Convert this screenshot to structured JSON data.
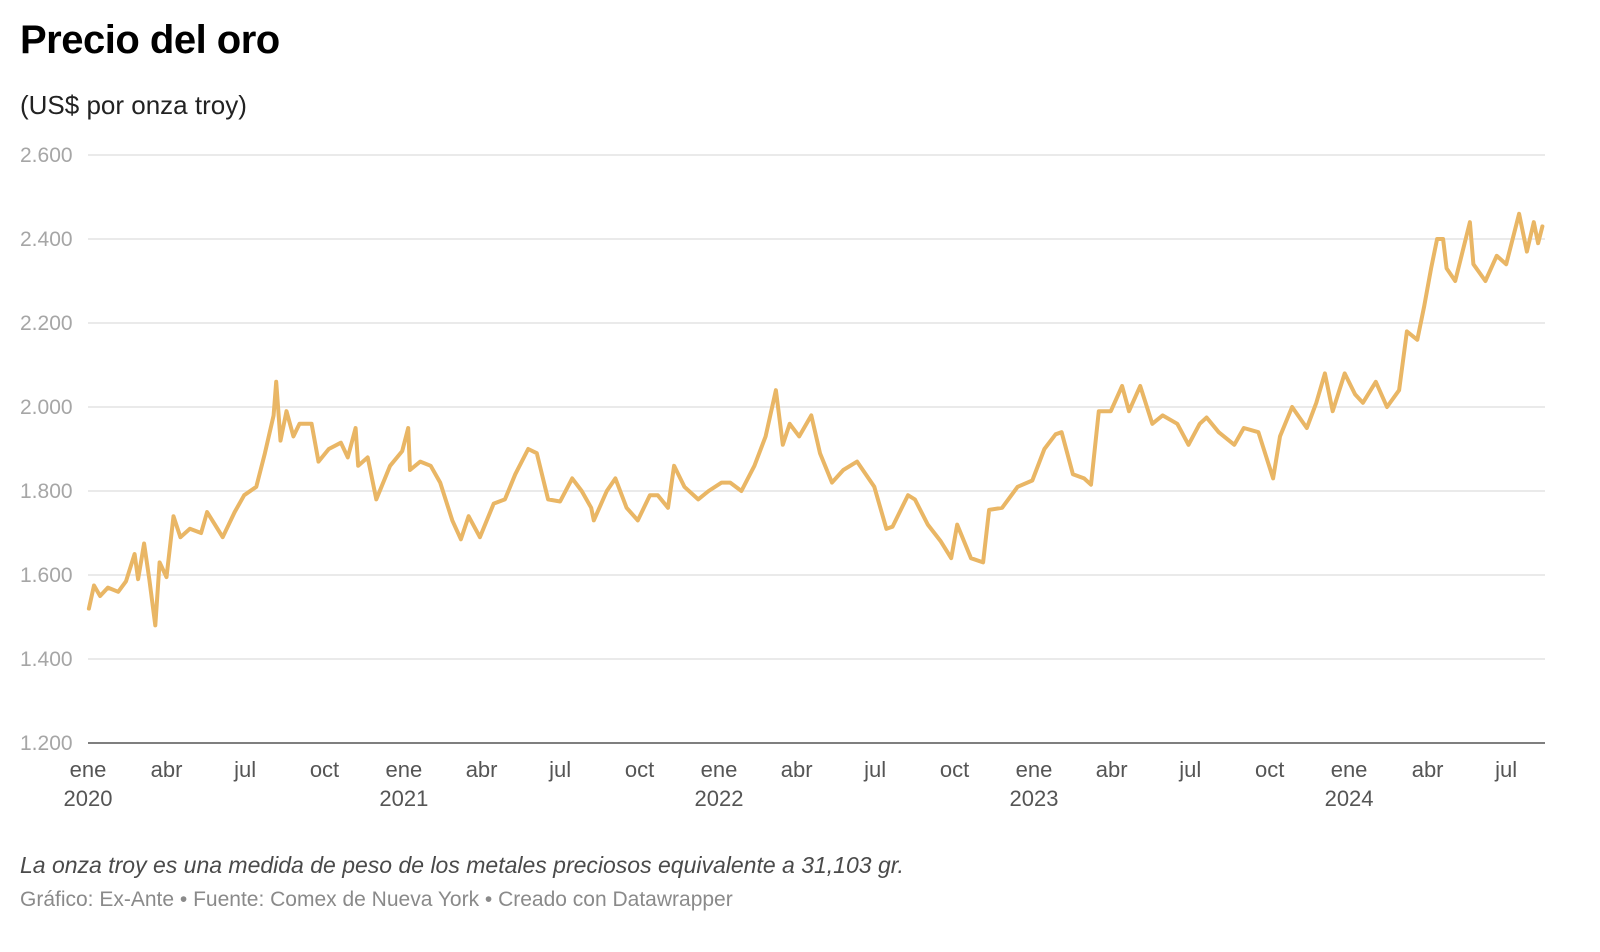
{
  "header": {
    "title": "Precio del oro",
    "subtitle": "(US$ por onza troy)"
  },
  "footer": {
    "note": "La onza troy es una medida de peso de los metales preciosos equivalente a 31,103 gr.",
    "credits": "Gráfico: Ex-Ante • Fuente: Comex de Nueva York • Creado con Datawrapper"
  },
  "colors": {
    "line": "#e9b665",
    "grid": "#e4e4e4",
    "tick_text": "#a6a6a6"
  },
  "chart_data": {
    "type": "line",
    "title": "Precio del oro",
    "subtitle": "(US$ por onza troy)",
    "ylim": [
      1200,
      2600
    ],
    "yticks": [
      1200,
      1400,
      1600,
      1800,
      2000,
      2200,
      2400,
      2600
    ],
    "ytick_labels": [
      "1.200",
      "1.400",
      "1.600",
      "1.800",
      "2.000",
      "2.200",
      "2.400",
      "2.600"
    ],
    "xlim": [
      "2020-01-01",
      "2024-08-15"
    ],
    "grid": true,
    "x_ticks": [
      {
        "date": "2020-01-01",
        "label": "ene",
        "year": "2020"
      },
      {
        "date": "2020-04-01",
        "label": "abr",
        "year": ""
      },
      {
        "date": "2020-07-01",
        "label": "jul",
        "year": ""
      },
      {
        "date": "2020-10-01",
        "label": "oct",
        "year": ""
      },
      {
        "date": "2021-01-01",
        "label": "ene",
        "year": "2021"
      },
      {
        "date": "2021-04-01",
        "label": "abr",
        "year": ""
      },
      {
        "date": "2021-07-01",
        "label": "jul",
        "year": ""
      },
      {
        "date": "2021-10-01",
        "label": "oct",
        "year": ""
      },
      {
        "date": "2022-01-01",
        "label": "ene",
        "year": "2022"
      },
      {
        "date": "2022-04-01",
        "label": "abr",
        "year": ""
      },
      {
        "date": "2022-07-01",
        "label": "jul",
        "year": ""
      },
      {
        "date": "2022-10-01",
        "label": "oct",
        "year": ""
      },
      {
        "date": "2023-01-01",
        "label": "ene",
        "year": "2023"
      },
      {
        "date": "2023-04-01",
        "label": "abr",
        "year": ""
      },
      {
        "date": "2023-07-01",
        "label": "jul",
        "year": ""
      },
      {
        "date": "2023-10-01",
        "label": "oct",
        "year": ""
      },
      {
        "date": "2024-01-01",
        "label": "ene",
        "year": "2024"
      },
      {
        "date": "2024-04-01",
        "label": "abr",
        "year": ""
      },
      {
        "date": "2024-07-01",
        "label": "jul",
        "year": ""
      }
    ],
    "series": [
      {
        "values": [
          [
            "2020-01-02",
            1520
          ],
          [
            "2020-01-08",
            1575
          ],
          [
            "2020-01-15",
            1550
          ],
          [
            "2020-01-24",
            1570
          ],
          [
            "2020-02-05",
            1560
          ],
          [
            "2020-02-14",
            1585
          ],
          [
            "2020-02-24",
            1650
          ],
          [
            "2020-02-28",
            1590
          ],
          [
            "2020-03-06",
            1675
          ],
          [
            "2020-03-12",
            1590
          ],
          [
            "2020-03-19",
            1480
          ],
          [
            "2020-03-24",
            1630
          ],
          [
            "2020-04-01",
            1595
          ],
          [
            "2020-04-09",
            1740
          ],
          [
            "2020-04-17",
            1690
          ],
          [
            "2020-04-28",
            1710
          ],
          [
            "2020-05-11",
            1700
          ],
          [
            "2020-05-18",
            1750
          ],
          [
            "2020-05-27",
            1720
          ],
          [
            "2020-06-05",
            1690
          ],
          [
            "2020-06-19",
            1750
          ],
          [
            "2020-06-30",
            1790
          ],
          [
            "2020-07-14",
            1810
          ],
          [
            "2020-07-24",
            1890
          ],
          [
            "2020-08-03",
            1980
          ],
          [
            "2020-08-06",
            2060
          ],
          [
            "2020-08-11",
            1920
          ],
          [
            "2020-08-18",
            1990
          ],
          [
            "2020-08-26",
            1930
          ],
          [
            "2020-09-02",
            1960
          ],
          [
            "2020-09-16",
            1960
          ],
          [
            "2020-09-24",
            1870
          ],
          [
            "2020-10-06",
            1900
          ],
          [
            "2020-10-20",
            1915
          ],
          [
            "2020-10-28",
            1880
          ],
          [
            "2020-11-06",
            1950
          ],
          [
            "2020-11-09",
            1860
          ],
          [
            "2020-11-20",
            1880
          ],
          [
            "2020-11-30",
            1780
          ],
          [
            "2020-12-16",
            1860
          ],
          [
            "2020-12-30",
            1895
          ],
          [
            "2021-01-06",
            1950
          ],
          [
            "2021-01-08",
            1850
          ],
          [
            "2021-01-20",
            1870
          ],
          [
            "2021-02-01",
            1860
          ],
          [
            "2021-02-12",
            1820
          ],
          [
            "2021-02-26",
            1730
          ],
          [
            "2021-03-08",
            1685
          ],
          [
            "2021-03-17",
            1740
          ],
          [
            "2021-03-30",
            1690
          ],
          [
            "2021-04-15",
            1770
          ],
          [
            "2021-04-28",
            1780
          ],
          [
            "2021-05-10",
            1840
          ],
          [
            "2021-05-25",
            1900
          ],
          [
            "2021-06-04",
            1890
          ],
          [
            "2021-06-17",
            1780
          ],
          [
            "2021-07-01",
            1775
          ],
          [
            "2021-07-15",
            1830
          ],
          [
            "2021-07-26",
            1800
          ],
          [
            "2021-08-06",
            1760
          ],
          [
            "2021-08-09",
            1730
          ],
          [
            "2021-08-24",
            1800
          ],
          [
            "2021-09-03",
            1830
          ],
          [
            "2021-09-16",
            1760
          ],
          [
            "2021-09-29",
            1730
          ],
          [
            "2021-10-13",
            1790
          ],
          [
            "2021-10-22",
            1790
          ],
          [
            "2021-11-03",
            1760
          ],
          [
            "2021-11-10",
            1860
          ],
          [
            "2021-11-22",
            1810
          ],
          [
            "2021-12-08",
            1780
          ],
          [
            "2021-12-20",
            1800
          ],
          [
            "2022-01-04",
            1820
          ],
          [
            "2022-01-14",
            1820
          ],
          [
            "2022-01-27",
            1800
          ],
          [
            "2022-02-11",
            1860
          ],
          [
            "2022-02-24",
            1930
          ],
          [
            "2022-03-08",
            2040
          ],
          [
            "2022-03-16",
            1910
          ],
          [
            "2022-03-24",
            1960
          ],
          [
            "2022-04-04",
            1930
          ],
          [
            "2022-04-18",
            1980
          ],
          [
            "2022-04-28",
            1890
          ],
          [
            "2022-05-12",
            1820
          ],
          [
            "2022-05-25",
            1850
          ],
          [
            "2022-06-10",
            1870
          ],
          [
            "2022-06-30",
            1810
          ],
          [
            "2022-07-14",
            1710
          ],
          [
            "2022-07-21",
            1715
          ],
          [
            "2022-08-08",
            1790
          ],
          [
            "2022-08-16",
            1780
          ],
          [
            "2022-08-31",
            1720
          ],
          [
            "2022-09-15",
            1680
          ],
          [
            "2022-09-27",
            1640
          ],
          [
            "2022-10-04",
            1720
          ],
          [
            "2022-10-20",
            1640
          ],
          [
            "2022-11-03",
            1630
          ],
          [
            "2022-11-10",
            1755
          ],
          [
            "2022-11-25",
            1760
          ],
          [
            "2022-12-13",
            1810
          ],
          [
            "2022-12-30",
            1825
          ],
          [
            "2023-01-13",
            1900
          ],
          [
            "2023-01-26",
            1935
          ],
          [
            "2023-02-02",
            1940
          ],
          [
            "2023-02-15",
            1840
          ],
          [
            "2023-02-28",
            1830
          ],
          [
            "2023-03-08",
            1815
          ],
          [
            "2023-03-17",
            1990
          ],
          [
            "2023-03-31",
            1990
          ],
          [
            "2023-04-13",
            2050
          ],
          [
            "2023-04-21",
            1990
          ],
          [
            "2023-05-04",
            2050
          ],
          [
            "2023-05-18",
            1960
          ],
          [
            "2023-05-30",
            1980
          ],
          [
            "2023-06-16",
            1960
          ],
          [
            "2023-06-29",
            1910
          ],
          [
            "2023-07-12",
            1960
          ],
          [
            "2023-07-20",
            1975
          ],
          [
            "2023-08-03",
            1940
          ],
          [
            "2023-08-21",
            1910
          ],
          [
            "2023-09-01",
            1950
          ],
          [
            "2023-09-18",
            1940
          ],
          [
            "2023-10-05",
            1830
          ],
          [
            "2023-10-13",
            1930
          ],
          [
            "2023-10-27",
            2000
          ],
          [
            "2023-11-13",
            1950
          ],
          [
            "2023-11-24",
            2010
          ],
          [
            "2023-12-04",
            2080
          ],
          [
            "2023-12-13",
            1990
          ],
          [
            "2023-12-27",
            2080
          ],
          [
            "2024-01-08",
            2030
          ],
          [
            "2024-01-17",
            2010
          ],
          [
            "2024-02-01",
            2060
          ],
          [
            "2024-02-14",
            2000
          ],
          [
            "2024-02-28",
            2040
          ],
          [
            "2024-03-08",
            2180
          ],
          [
            "2024-03-20",
            2160
          ],
          [
            "2024-03-28",
            2240
          ],
          [
            "2024-04-05",
            2330
          ],
          [
            "2024-04-12",
            2400
          ],
          [
            "2024-04-19",
            2400
          ],
          [
            "2024-04-23",
            2330
          ],
          [
            "2024-05-03",
            2300
          ],
          [
            "2024-05-20",
            2440
          ],
          [
            "2024-05-24",
            2340
          ],
          [
            "2024-06-07",
            2300
          ],
          [
            "2024-06-20",
            2360
          ],
          [
            "2024-07-01",
            2340
          ],
          [
            "2024-07-16",
            2460
          ],
          [
            "2024-07-25",
            2370
          ],
          [
            "2024-08-02",
            2440
          ],
          [
            "2024-08-07",
            2390
          ],
          [
            "2024-08-12",
            2430
          ]
        ]
      }
    ]
  }
}
